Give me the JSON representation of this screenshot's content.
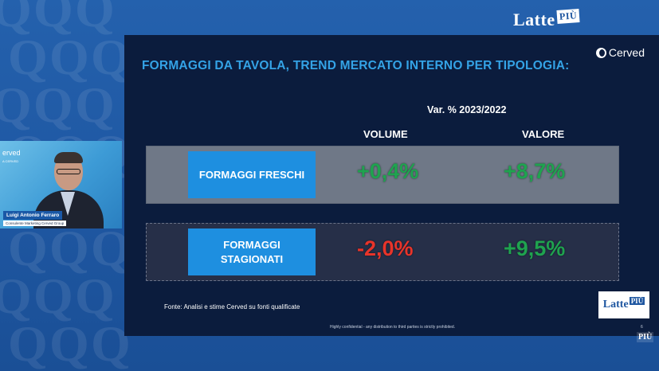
{
  "header": {
    "logo_text": "Latte",
    "logo_badge": "PIÙ"
  },
  "slide": {
    "title": "FORMAGGI DA TAVOLA, TREND MERCATO INTERNO PER TIPOLOGIA:",
    "brand": "Cerved",
    "subtitle": "Var. % 2023/2022",
    "columns": [
      "VOLUME",
      "VALORE"
    ],
    "rows": [
      {
        "category": "FORMAGGI FRESCHI",
        "volume": "+0,4%",
        "valore": "+8,7%"
      },
      {
        "category": "FORMAGGI STAGIONATI",
        "volume": "-2,0%",
        "valore": "+9,5%"
      }
    ],
    "source": "Fonte: Analisi e stime Cerved su fonti qualificate",
    "confidential": "Highly confidential - any distribution to third parties is strictly prohibited.",
    "page_number": "6",
    "slide_logo_text": "Latte",
    "slide_logo_badge": "PIÙ"
  },
  "webcam": {
    "brand": "erved",
    "brand_sub": "A CERVED",
    "speaker_name": "Luigi Antonio Ferraro",
    "speaker_role": "Consulente Marketing Cerved Group"
  },
  "corner_logo": "PIÙ",
  "colors": {
    "positive": "#1fa34f",
    "negative": "#e8342a",
    "title": "#34a3e6",
    "category_box": "#1e8fe0"
  }
}
